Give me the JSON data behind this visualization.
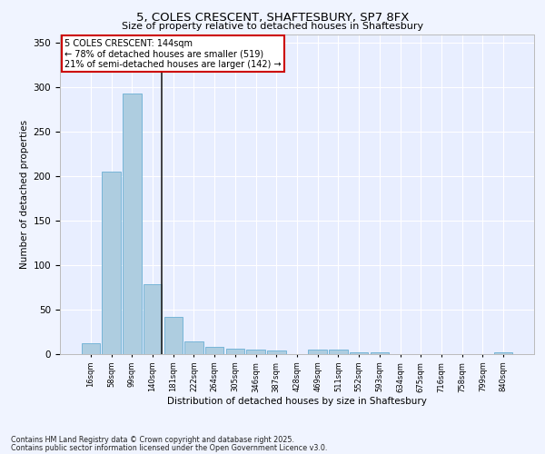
{
  "title1": "5, COLES CRESCENT, SHAFTESBURY, SP7 8FX",
  "title2": "Size of property relative to detached houses in Shaftesbury",
  "xlabel": "Distribution of detached houses by size in Shaftesbury",
  "ylabel": "Number of detached properties",
  "categories": [
    "16sqm",
    "58sqm",
    "99sqm",
    "140sqm",
    "181sqm",
    "222sqm",
    "264sqm",
    "305sqm",
    "346sqm",
    "387sqm",
    "428sqm",
    "469sqm",
    "511sqm",
    "552sqm",
    "593sqm",
    "634sqm",
    "675sqm",
    "716sqm",
    "758sqm",
    "799sqm",
    "840sqm"
  ],
  "values": [
    12,
    205,
    293,
    79,
    42,
    14,
    8,
    6,
    5,
    4,
    0,
    5,
    5,
    2,
    2,
    0,
    0,
    0,
    0,
    0,
    2
  ],
  "bar_color": "#aecde0",
  "bar_edge_color": "#6aafd4",
  "highlight_index": 3,
  "highlight_line_color": "#222222",
  "annotation_text": "5 COLES CRESCENT: 144sqm\n← 78% of detached houses are smaller (519)\n21% of semi-detached houses are larger (142) →",
  "annotation_box_color": "#ffffff",
  "annotation_box_edge": "#cc0000",
  "ylim": [
    0,
    360
  ],
  "yticks": [
    0,
    50,
    100,
    150,
    200,
    250,
    300,
    350
  ],
  "background_color": "#e8eeff",
  "grid_color": "#ffffff",
  "fig_background": "#f0f4ff",
  "footer1": "Contains HM Land Registry data © Crown copyright and database right 2025.",
  "footer2": "Contains public sector information licensed under the Open Government Licence v3.0."
}
